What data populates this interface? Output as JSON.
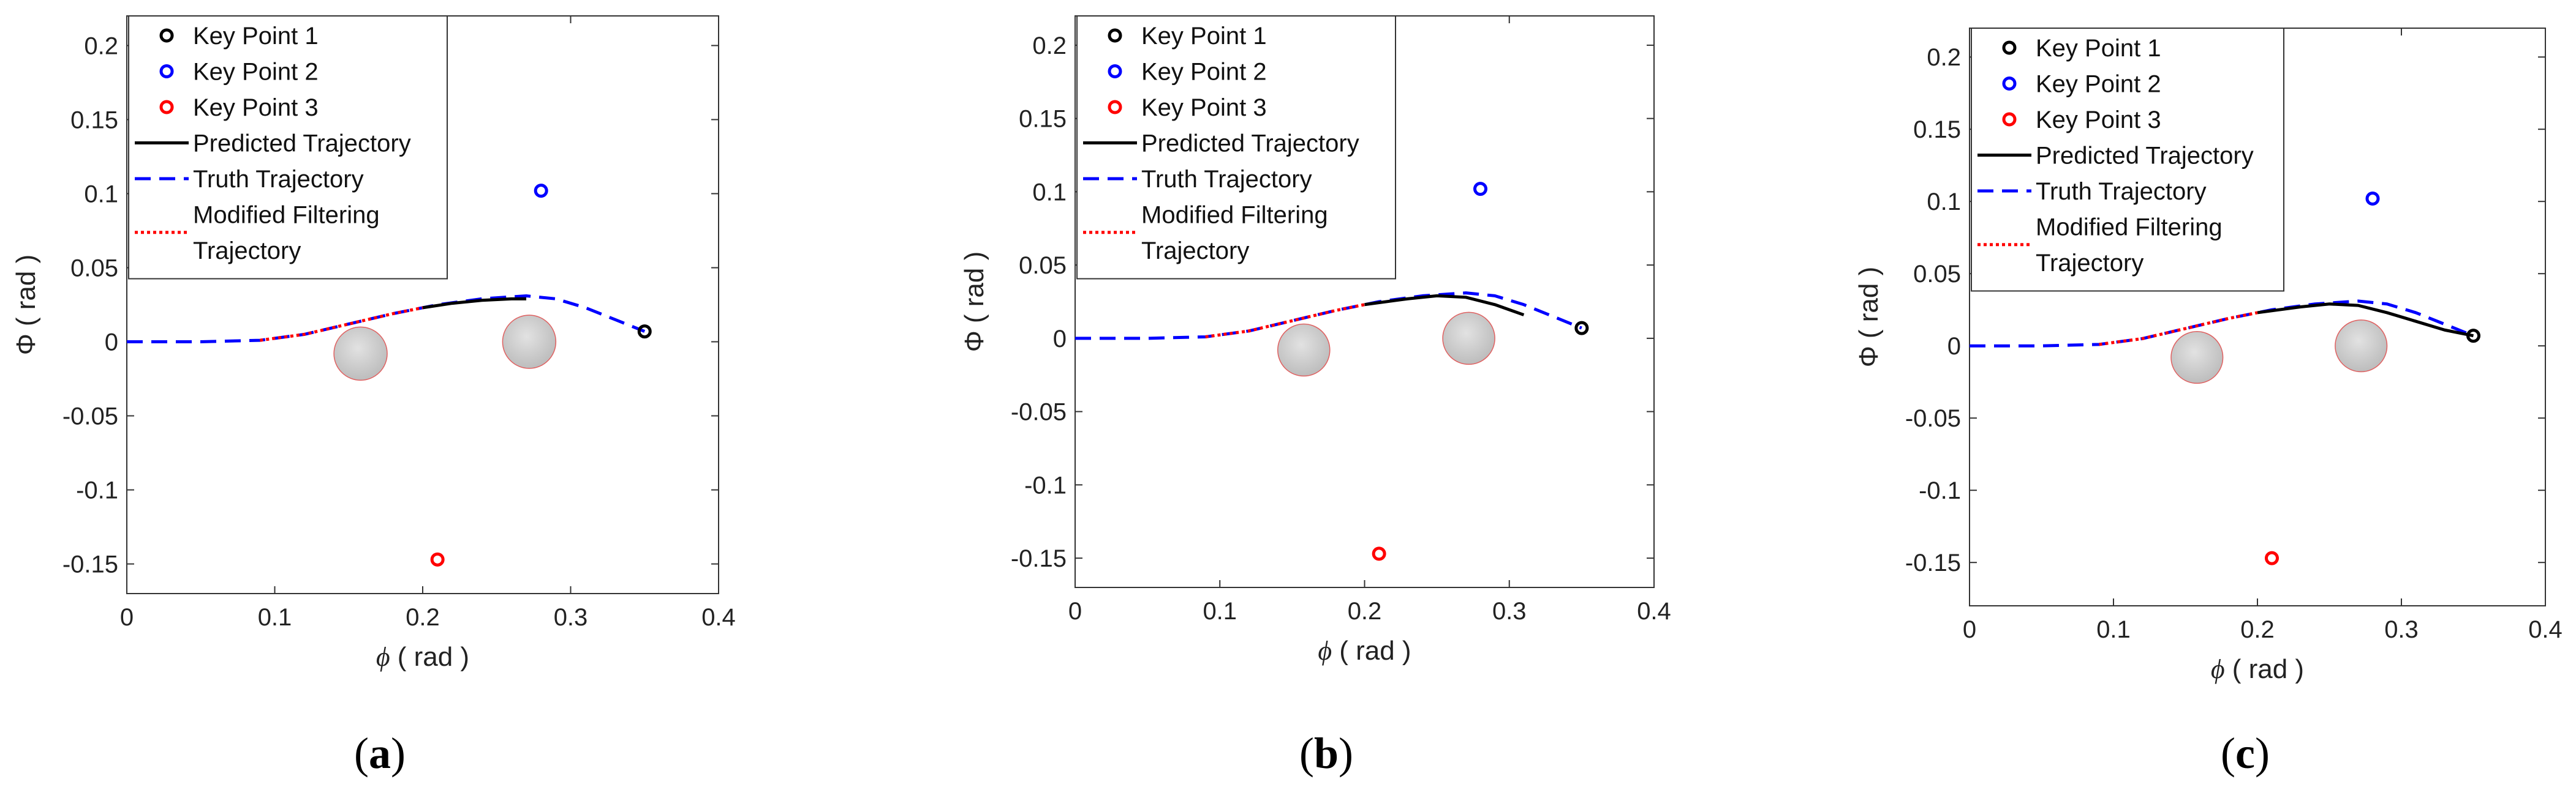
{
  "chart_data": [
    {
      "type": "line",
      "caption_letter": "a",
      "xlabel_symbol": "ϕ",
      "xlabel_unit": "( rad )",
      "ylabel_symbol": "Φ",
      "ylabel_unit": "( rad )",
      "xlim": [
        0,
        0.4
      ],
      "ylim": [
        -0.17,
        0.22
      ],
      "xticks": [
        0,
        0.1,
        0.2,
        0.3,
        0.4
      ],
      "xtick_labels": [
        "0",
        "0.1",
        "0.2",
        "0.3",
        "0.4"
      ],
      "yticks": [
        0.2,
        0.15,
        0.1,
        0.05,
        0,
        -0.05,
        -0.1,
        -0.15
      ],
      "ytick_labels": [
        "0.2",
        "0.15",
        "0.1",
        "0.05",
        "0",
        "-0.05",
        "-0.1",
        "-0.15"
      ],
      "legend": [
        "Key Point 1",
        "Key Point 2",
        "Key Point 3",
        "Predicted Trajectory",
        "Truth Trajectory",
        "Modified Filtering",
        "Trajectory"
      ],
      "key_points": [
        {
          "name": "Key Point 1",
          "x": 0.35,
          "y": 0.007,
          "color": "#000000"
        },
        {
          "name": "Key Point 2",
          "x": 0.28,
          "y": 0.102,
          "color": "#0000ff"
        },
        {
          "name": "Key Point 3",
          "x": 0.21,
          "y": -0.147,
          "color": "#ff0000"
        }
      ],
      "obstacles": [
        {
          "x": 0.158,
          "y": -0.008,
          "r": 0.018
        },
        {
          "x": 0.272,
          "y": 0.0,
          "r": 0.018
        }
      ],
      "series": [
        {
          "name": "Truth Trajectory",
          "color": "#0000ff",
          "style": "dashed",
          "x": [
            0,
            0.05,
            0.09,
            0.12,
            0.15,
            0.18,
            0.21,
            0.24,
            0.27,
            0.29,
            0.31,
            0.33,
            0.35
          ],
          "y": [
            0,
            0,
            0.001,
            0.005,
            0.012,
            0.019,
            0.025,
            0.029,
            0.031,
            0.029,
            0.023,
            0.015,
            0.007
          ]
        },
        {
          "name": "Predicted Trajectory",
          "color": "#000000",
          "style": "solid",
          "x": [
            0.2,
            0.22,
            0.24,
            0.26,
            0.27
          ],
          "y": [
            0.023,
            0.026,
            0.028,
            0.029,
            0.029
          ]
        },
        {
          "name": "Modified Filtering Trajectory",
          "color": "#ff0000",
          "style": "dotted",
          "x": [
            0.09,
            0.12,
            0.15,
            0.18,
            0.2
          ],
          "y": [
            0.001,
            0.005,
            0.012,
            0.019,
            0.023
          ]
        }
      ]
    },
    {
      "type": "line",
      "caption_letter": "b",
      "xlabel_symbol": "ϕ",
      "xlabel_unit": "( rad )",
      "ylabel_symbol": "Φ",
      "ylabel_unit": "( rad )",
      "xlim": [
        0,
        0.4
      ],
      "ylim": [
        -0.17,
        0.22
      ],
      "xticks": [
        0,
        0.1,
        0.2,
        0.3,
        0.4
      ],
      "xtick_labels": [
        "0",
        "0.1",
        "0.2",
        "0.3",
        "0.4"
      ],
      "yticks": [
        0.2,
        0.15,
        0.1,
        0.05,
        0,
        -0.05,
        -0.1,
        -0.15
      ],
      "ytick_labels": [
        "0.2",
        "0.15",
        "0.1",
        "0.05",
        "0",
        "-0.05",
        "-0.1",
        "-0.15"
      ],
      "legend": [
        "Key Point 1",
        "Key Point 2",
        "Key Point 3",
        "Predicted Trajectory",
        "Truth Trajectory",
        "Modified Filtering",
        "Trajectory"
      ],
      "key_points": [
        {
          "name": "Key Point 1",
          "x": 0.35,
          "y": 0.007,
          "color": "#000000"
        },
        {
          "name": "Key Point 2",
          "x": 0.28,
          "y": 0.102,
          "color": "#0000ff"
        },
        {
          "name": "Key Point 3",
          "x": 0.21,
          "y": -0.147,
          "color": "#ff0000"
        }
      ],
      "obstacles": [
        {
          "x": 0.158,
          "y": -0.008,
          "r": 0.018
        },
        {
          "x": 0.272,
          "y": 0.0,
          "r": 0.018
        }
      ],
      "series": [
        {
          "name": "Truth Trajectory",
          "color": "#0000ff",
          "style": "dashed",
          "x": [
            0,
            0.05,
            0.09,
            0.12,
            0.15,
            0.18,
            0.21,
            0.24,
            0.27,
            0.29,
            0.31,
            0.33,
            0.35
          ],
          "y": [
            0,
            0,
            0.001,
            0.005,
            0.012,
            0.019,
            0.025,
            0.029,
            0.031,
            0.029,
            0.023,
            0.015,
            0.007
          ]
        },
        {
          "name": "Predicted Trajectory",
          "color": "#000000",
          "style": "solid",
          "x": [
            0.2,
            0.23,
            0.25,
            0.27,
            0.29,
            0.31
          ],
          "y": [
            0.023,
            0.027,
            0.029,
            0.028,
            0.023,
            0.016
          ]
        },
        {
          "name": "Modified Filtering Trajectory",
          "color": "#ff0000",
          "style": "dotted",
          "x": [
            0.09,
            0.12,
            0.15,
            0.18,
            0.2
          ],
          "y": [
            0.001,
            0.005,
            0.012,
            0.019,
            0.023
          ]
        }
      ]
    },
    {
      "type": "line",
      "caption_letter": "c",
      "xlabel_symbol": "ϕ",
      "xlabel_unit": "( rad )",
      "ylabel_symbol": "Φ",
      "ylabel_unit": "( rad )",
      "xlim": [
        0,
        0.4
      ],
      "ylim": [
        -0.18,
        0.22
      ],
      "xticks": [
        0,
        0.1,
        0.2,
        0.3,
        0.4
      ],
      "xtick_labels": [
        "0",
        "0.1",
        "0.2",
        "0.3",
        "0.4"
      ],
      "yticks": [
        0.2,
        0.15,
        0.1,
        0.05,
        0,
        -0.05,
        -0.1,
        -0.15
      ],
      "ytick_labels": [
        "0.2",
        "0.15",
        "0.1",
        "0.05",
        "0",
        "-0.05",
        "-0.1",
        "-0.15"
      ],
      "legend": [
        "Key Point 1",
        "Key Point 2",
        "Key Point 3",
        "Predicted Trajectory",
        "Truth Trajectory",
        "Modified Filtering",
        "Trajectory"
      ],
      "key_points": [
        {
          "name": "Key Point 1",
          "x": 0.35,
          "y": 0.007,
          "color": "#000000"
        },
        {
          "name": "Key Point 2",
          "x": 0.28,
          "y": 0.102,
          "color": "#0000ff"
        },
        {
          "name": "Key Point 3",
          "x": 0.21,
          "y": -0.147,
          "color": "#ff0000"
        }
      ],
      "obstacles": [
        {
          "x": 0.158,
          "y": -0.008,
          "r": 0.018
        },
        {
          "x": 0.272,
          "y": 0.0,
          "r": 0.018
        }
      ],
      "series": [
        {
          "name": "Truth Trajectory",
          "color": "#0000ff",
          "style": "dashed",
          "x": [
            0,
            0.05,
            0.09,
            0.12,
            0.15,
            0.18,
            0.21,
            0.24,
            0.27,
            0.29,
            0.31,
            0.33,
            0.35
          ],
          "y": [
            0,
            0,
            0.001,
            0.005,
            0.012,
            0.019,
            0.025,
            0.029,
            0.031,
            0.029,
            0.023,
            0.015,
            0.007
          ]
        },
        {
          "name": "Predicted Trajectory",
          "color": "#000000",
          "style": "solid",
          "x": [
            0.2,
            0.23,
            0.25,
            0.27,
            0.29,
            0.31,
            0.33,
            0.35
          ],
          "y": [
            0.023,
            0.027,
            0.029,
            0.028,
            0.023,
            0.017,
            0.011,
            0.007
          ]
        },
        {
          "name": "Modified Filtering Trajectory",
          "color": "#ff0000",
          "style": "dotted",
          "x": [
            0.09,
            0.12,
            0.15,
            0.18,
            0.2
          ],
          "y": [
            0.001,
            0.005,
            0.012,
            0.019,
            0.023
          ]
        }
      ]
    }
  ]
}
